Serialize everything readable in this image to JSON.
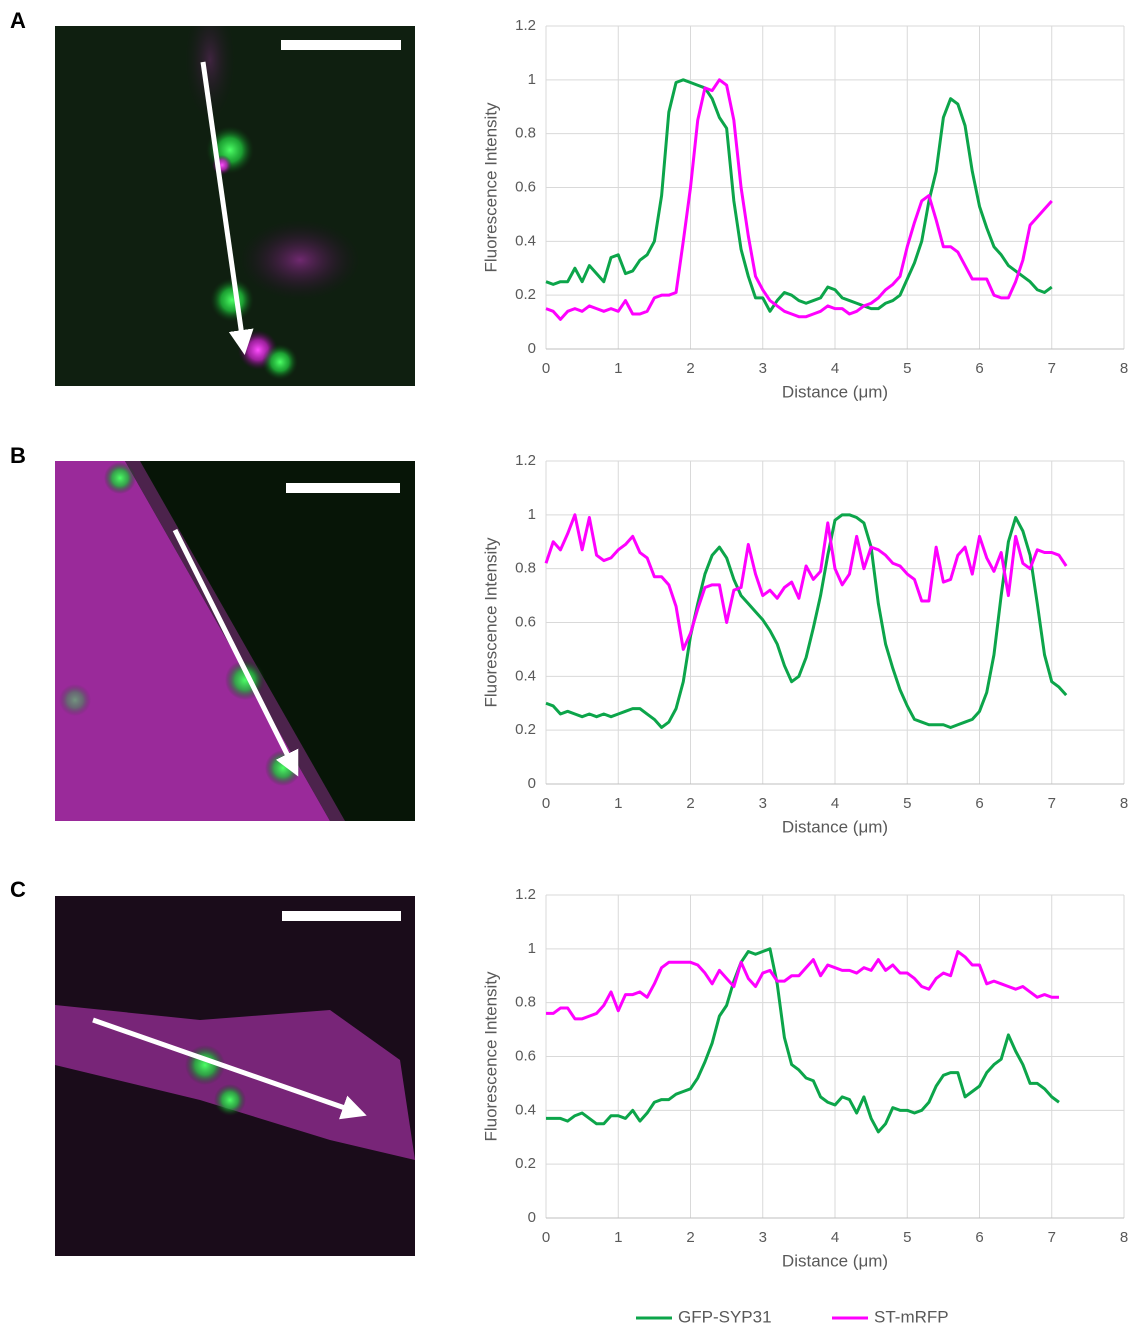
{
  "chart_data": [
    {
      "type": "line",
      "panel": "A",
      "x_label": "Distance (μm)",
      "y_label": "Fluorescence Intensity",
      "xlim": [
        0,
        8
      ],
      "xticks": [
        0,
        1,
        2,
        3,
        4,
        5,
        6,
        7,
        8
      ],
      "ylim": [
        0,
        1.2
      ],
      "yticks": [
        0,
        0.2,
        0.4,
        0.6,
        0.8,
        1,
        1.2
      ],
      "grid": true,
      "x": [
        0,
        0.1,
        0.2,
        0.3,
        0.4,
        0.5,
        0.6,
        0.7,
        0.8,
        0.9,
        1,
        1.1,
        1.2,
        1.3,
        1.4,
        1.5,
        1.6,
        1.7,
        1.8,
        1.9,
        2,
        2.1,
        2.2,
        2.3,
        2.4,
        2.5,
        2.6,
        2.7,
        2.8,
        2.9,
        3,
        3.1,
        3.2,
        3.3,
        3.4,
        3.5,
        3.6,
        3.7,
        3.8,
        3.9,
        4,
        4.1,
        4.2,
        4.3,
        4.4,
        4.5,
        4.6,
        4.7,
        4.8,
        4.9,
        5,
        5.1,
        5.2,
        5.3,
        5.4,
        5.5,
        5.6,
        5.7,
        5.8,
        5.9,
        6,
        6.1,
        6.2,
        6.3,
        6.4,
        6.5,
        6.6,
        6.7,
        6.8,
        6.9,
        7
      ],
      "series": [
        {
          "color": "#0ca54a",
          "values": [
            0.25,
            0.24,
            0.25,
            0.25,
            0.3,
            0.25,
            0.31,
            0.28,
            0.25,
            0.34,
            0.35,
            0.28,
            0.29,
            0.33,
            0.35,
            0.4,
            0.57,
            0.88,
            0.99,
            1.0,
            0.99,
            0.98,
            0.97,
            0.93,
            0.86,
            0.82,
            0.55,
            0.37,
            0.27,
            0.19,
            0.19,
            0.14,
            0.18,
            0.21,
            0.2,
            0.18,
            0.17,
            0.18,
            0.19,
            0.23,
            0.22,
            0.19,
            0.18,
            0.17,
            0.16,
            0.15,
            0.15,
            0.17,
            0.18,
            0.2,
            0.26,
            0.32,
            0.4,
            0.55,
            0.66,
            0.86,
            0.93,
            0.91,
            0.83,
            0.66,
            0.53,
            0.45,
            0.38,
            0.35,
            0.31,
            0.29,
            0.27,
            0.25,
            0.22,
            0.21,
            0.23
          ]
        },
        {
          "color": "#ff00ff",
          "values": [
            0.15,
            0.14,
            0.11,
            0.14,
            0.15,
            0.14,
            0.16,
            0.15,
            0.14,
            0.15,
            0.14,
            0.18,
            0.13,
            0.13,
            0.14,
            0.19,
            0.2,
            0.2,
            0.21,
            0.4,
            0.6,
            0.85,
            0.97,
            0.96,
            1.0,
            0.98,
            0.85,
            0.6,
            0.42,
            0.27,
            0.22,
            0.18,
            0.16,
            0.14,
            0.13,
            0.12,
            0.12,
            0.13,
            0.14,
            0.16,
            0.15,
            0.15,
            0.13,
            0.14,
            0.16,
            0.17,
            0.19,
            0.22,
            0.24,
            0.27,
            0.38,
            0.47,
            0.55,
            0.57,
            0.48,
            0.38,
            0.38,
            0.36,
            0.31,
            0.26,
            0.26,
            0.26,
            0.2,
            0.19,
            0.19,
            0.25,
            0.33,
            0.46,
            0.49,
            0.52,
            0.55
          ]
        }
      ]
    },
    {
      "type": "line",
      "panel": "B",
      "x_label": "Distance (μm)",
      "y_label": "Fluorescence Intensity",
      "xlim": [
        0,
        8
      ],
      "xticks": [
        0,
        1,
        2,
        3,
        4,
        5,
        6,
        7,
        8
      ],
      "ylim": [
        0,
        1.2
      ],
      "yticks": [
        0,
        0.2,
        0.4,
        0.6,
        0.8,
        1,
        1.2
      ],
      "grid": true,
      "x": [
        0,
        0.1,
        0.2,
        0.3,
        0.4,
        0.5,
        0.6,
        0.7,
        0.8,
        0.9,
        1,
        1.1,
        1.2,
        1.3,
        1.4,
        1.5,
        1.6,
        1.7,
        1.8,
        1.9,
        2,
        2.1,
        2.2,
        2.3,
        2.4,
        2.5,
        2.6,
        2.7,
        2.8,
        2.9,
        3,
        3.1,
        3.2,
        3.3,
        3.4,
        3.5,
        3.6,
        3.7,
        3.8,
        3.9,
        4,
        4.1,
        4.2,
        4.3,
        4.4,
        4.5,
        4.6,
        4.7,
        4.8,
        4.9,
        5,
        5.1,
        5.2,
        5.3,
        5.4,
        5.5,
        5.6,
        5.7,
        5.8,
        5.9,
        6,
        6.1,
        6.2,
        6.3,
        6.4,
        6.5,
        6.6,
        6.7,
        6.8,
        6.9,
        7,
        7.1,
        7.2
      ],
      "series": [
        {
          "color": "#0ca54a",
          "values": [
            0.3,
            0.29,
            0.26,
            0.27,
            0.26,
            0.25,
            0.26,
            0.25,
            0.26,
            0.25,
            0.26,
            0.27,
            0.28,
            0.28,
            0.26,
            0.24,
            0.21,
            0.23,
            0.28,
            0.38,
            0.55,
            0.67,
            0.78,
            0.85,
            0.88,
            0.84,
            0.76,
            0.7,
            0.67,
            0.64,
            0.61,
            0.57,
            0.52,
            0.44,
            0.38,
            0.4,
            0.47,
            0.58,
            0.7,
            0.85,
            0.98,
            1.0,
            1.0,
            0.99,
            0.97,
            0.88,
            0.67,
            0.52,
            0.43,
            0.35,
            0.29,
            0.24,
            0.23,
            0.22,
            0.22,
            0.22,
            0.21,
            0.22,
            0.23,
            0.24,
            0.27,
            0.34,
            0.48,
            0.7,
            0.9,
            0.99,
            0.94,
            0.85,
            0.67,
            0.48,
            0.38,
            0.36,
            0.33
          ]
        },
        {
          "color": "#ff00ff",
          "values": [
            0.82,
            0.9,
            0.87,
            0.93,
            1.0,
            0.87,
            0.99,
            0.85,
            0.83,
            0.84,
            0.87,
            0.89,
            0.92,
            0.86,
            0.84,
            0.77,
            0.77,
            0.74,
            0.66,
            0.5,
            0.56,
            0.65,
            0.73,
            0.74,
            0.74,
            0.6,
            0.72,
            0.73,
            0.89,
            0.78,
            0.7,
            0.72,
            0.69,
            0.73,
            0.75,
            0.69,
            0.81,
            0.76,
            0.79,
            0.97,
            0.8,
            0.74,
            0.78,
            0.92,
            0.8,
            0.88,
            0.87,
            0.85,
            0.82,
            0.81,
            0.78,
            0.76,
            0.68,
            0.68,
            0.88,
            0.75,
            0.76,
            0.85,
            0.88,
            0.78,
            0.92,
            0.84,
            0.79,
            0.86,
            0.7,
            0.92,
            0.82,
            0.8,
            0.87,
            0.86,
            0.86,
            0.85,
            0.81
          ]
        }
      ]
    },
    {
      "type": "line",
      "panel": "C",
      "x_label": "Distance (μm)",
      "y_label": "Fluorescence Intensity",
      "xlim": [
        0,
        8
      ],
      "xticks": [
        0,
        1,
        2,
        3,
        4,
        5,
        6,
        7,
        8
      ],
      "ylim": [
        0,
        1.2
      ],
      "yticks": [
        0,
        0.2,
        0.4,
        0.6,
        0.8,
        1,
        1.2
      ],
      "grid": true,
      "x": [
        0,
        0.1,
        0.2,
        0.3,
        0.4,
        0.5,
        0.6,
        0.7,
        0.8,
        0.9,
        1,
        1.1,
        1.2,
        1.3,
        1.4,
        1.5,
        1.6,
        1.7,
        1.8,
        1.9,
        2,
        2.1,
        2.2,
        2.3,
        2.4,
        2.5,
        2.6,
        2.7,
        2.8,
        2.9,
        3,
        3.1,
        3.2,
        3.3,
        3.4,
        3.5,
        3.6,
        3.7,
        3.8,
        3.9,
        4,
        4.1,
        4.2,
        4.3,
        4.4,
        4.5,
        4.6,
        4.7,
        4.8,
        4.9,
        5,
        5.1,
        5.2,
        5.3,
        5.4,
        5.5,
        5.6,
        5.7,
        5.8,
        5.9,
        6,
        6.1,
        6.2,
        6.3,
        6.4,
        6.5,
        6.6,
        6.7,
        6.8,
        6.9,
        7,
        7.1
      ],
      "series": [
        {
          "color": "#0ca54a",
          "values": [
            0.37,
            0.37,
            0.37,
            0.36,
            0.38,
            0.39,
            0.37,
            0.35,
            0.35,
            0.38,
            0.38,
            0.37,
            0.4,
            0.36,
            0.39,
            0.43,
            0.44,
            0.44,
            0.46,
            0.47,
            0.48,
            0.52,
            0.58,
            0.65,
            0.75,
            0.79,
            0.88,
            0.95,
            0.99,
            0.98,
            0.99,
            1.0,
            0.87,
            0.67,
            0.57,
            0.55,
            0.52,
            0.51,
            0.45,
            0.43,
            0.42,
            0.45,
            0.44,
            0.39,
            0.45,
            0.37,
            0.32,
            0.35,
            0.41,
            0.4,
            0.4,
            0.39,
            0.4,
            0.43,
            0.49,
            0.53,
            0.54,
            0.54,
            0.45,
            0.47,
            0.49,
            0.54,
            0.57,
            0.59,
            0.68,
            0.62,
            0.57,
            0.5,
            0.5,
            0.48,
            0.45,
            0.43
          ]
        },
        {
          "color": "#ff00ff",
          "values": [
            0.76,
            0.76,
            0.78,
            0.78,
            0.74,
            0.74,
            0.75,
            0.76,
            0.79,
            0.84,
            0.77,
            0.83,
            0.83,
            0.84,
            0.82,
            0.87,
            0.93,
            0.95,
            0.95,
            0.95,
            0.95,
            0.94,
            0.91,
            0.87,
            0.92,
            0.89,
            0.86,
            0.95,
            0.89,
            0.86,
            0.91,
            0.92,
            0.88,
            0.88,
            0.9,
            0.9,
            0.93,
            0.96,
            0.9,
            0.94,
            0.93,
            0.92,
            0.92,
            0.91,
            0.93,
            0.92,
            0.96,
            0.92,
            0.94,
            0.91,
            0.91,
            0.89,
            0.86,
            0.85,
            0.89,
            0.91,
            0.9,
            0.99,
            0.97,
            0.94,
            0.94,
            0.87,
            0.88,
            0.87,
            0.86,
            0.85,
            0.86,
            0.84,
            0.82,
            0.83,
            0.82,
            0.82
          ]
        }
      ]
    }
  ],
  "legend": [
    {
      "name": "GFP-SYP31",
      "color": "#0ca54a"
    },
    {
      "name": "ST-mRFP",
      "color": "#ff00ff"
    }
  ]
}
